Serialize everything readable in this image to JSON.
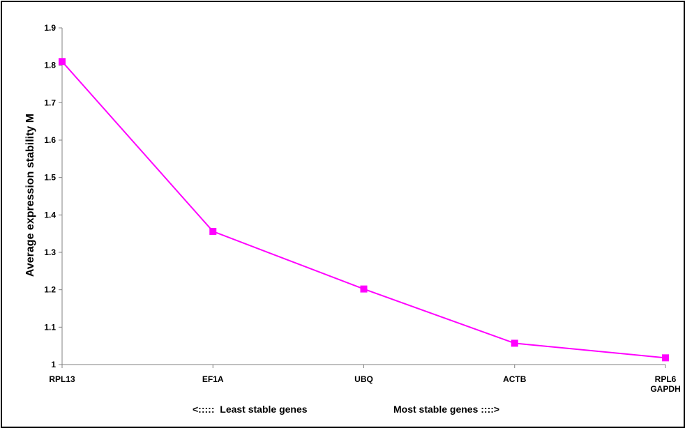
{
  "chart_data": {
    "type": "line",
    "categories": [
      [
        "RPL13"
      ],
      [
        "EF1A"
      ],
      [
        "UBQ"
      ],
      [
        "ACTB"
      ],
      [
        "RPL6",
        "GAPDH"
      ]
    ],
    "values": [
      1.81,
      1.356,
      1.202,
      1.057,
      1.018
    ],
    "ylabel": "Average expression stability M",
    "ylim": [
      1,
      1.9
    ],
    "yticks": [
      1,
      1.1,
      1.2,
      1.3,
      1.4,
      1.5,
      1.6,
      1.7,
      1.8,
      1.9
    ],
    "grid": false,
    "series_color": "#FF00FF",
    "marker": "square",
    "notes": {
      "left": "<:::::  Least stable genes",
      "right": "Most stable genes ::::>"
    }
  }
}
